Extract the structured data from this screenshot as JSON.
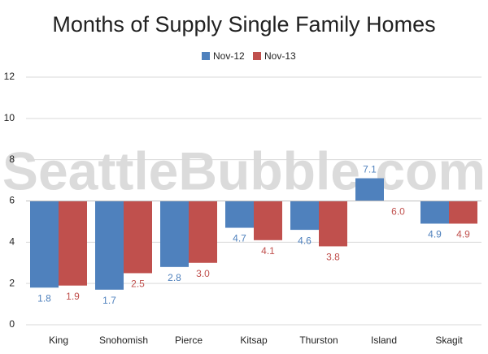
{
  "chart_data": {
    "type": "bar",
    "title": "Months of Supply Single Family Homes",
    "watermark": "SeattleBubble.com",
    "categories": [
      "King",
      "Snohomish",
      "Pierce",
      "Kitsap",
      "Thurston",
      "Island",
      "Skagit"
    ],
    "series": [
      {
        "name": "Nov-12",
        "color": "#4f81bd",
        "values": [
          1.8,
          1.7,
          2.8,
          4.7,
          4.6,
          7.1,
          4.9
        ],
        "value_labels": [
          "1.8",
          "1.7",
          "2.8",
          "4.7",
          "4.6",
          "7.1",
          "4.9"
        ]
      },
      {
        "name": "Nov-13",
        "color": "#c0504d",
        "values": [
          1.9,
          2.5,
          3.0,
          4.1,
          3.8,
          6.0,
          4.9
        ],
        "value_labels": [
          "1.9",
          "2.5",
          "3.0",
          "4.1",
          "3.8",
          "6.0",
          "4.9"
        ]
      }
    ],
    "baseline": 6,
    "ylim": [
      0,
      12
    ],
    "yticks": [
      0,
      2,
      4,
      6,
      8,
      10,
      12
    ],
    "grid": true,
    "legend": "top"
  }
}
